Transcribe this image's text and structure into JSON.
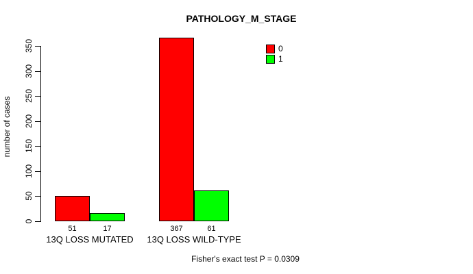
{
  "chart_data": {
    "type": "bar",
    "title": "PATHOLOGY_M_STAGE",
    "xlabel": "",
    "ylabel": "number of cases",
    "categories": [
      "13Q LOSS MUTATED",
      "13Q LOSS WILD-TYPE"
    ],
    "series": [
      {
        "name": "0",
        "color": "#ff0000",
        "values": [
          51,
          367
        ]
      },
      {
        "name": "1",
        "color": "#00ff00",
        "values": [
          17,
          61
        ]
      }
    ],
    "bar_value_labels": [
      [
        51,
        17
      ],
      [
        367,
        61
      ]
    ],
    "ylim": [
      0,
      350
    ],
    "yticks": [
      0,
      50,
      100,
      150,
      200,
      250,
      300,
      350
    ],
    "grid": false,
    "legend_position": "top-right",
    "footnote": "Fisher's exact test P = 0.0309"
  }
}
